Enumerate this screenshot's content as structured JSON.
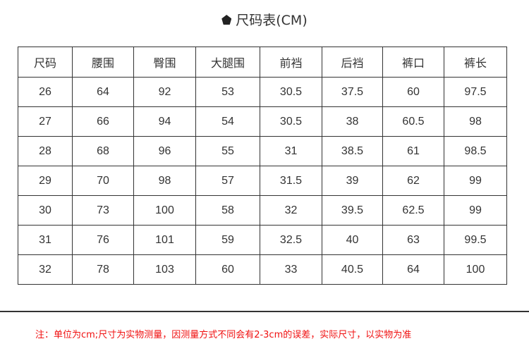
{
  "title": "尺码表(CM)",
  "headers": [
    "尺码",
    "腰围",
    "臀围",
    "大腿围",
    "前裆",
    "后裆",
    "裤口",
    "裤长"
  ],
  "rows": [
    [
      "26",
      "64",
      "92",
      "53",
      "30.5",
      "37.5",
      "60",
      "97.5"
    ],
    [
      "27",
      "66",
      "94",
      "54",
      "30.5",
      "38",
      "60.5",
      "98"
    ],
    [
      "28",
      "68",
      "96",
      "55",
      "31",
      "38.5",
      "61",
      "98.5"
    ],
    [
      "29",
      "70",
      "98",
      "57",
      "31.5",
      "39",
      "62",
      "99"
    ],
    [
      "30",
      "73",
      "100",
      "58",
      "32",
      "39.5",
      "62.5",
      "99"
    ],
    [
      "31",
      "76",
      "101",
      "59",
      "32.5",
      "40",
      "63",
      "99.5"
    ],
    [
      "32",
      "78",
      "103",
      "60",
      "33",
      "40.5",
      "64",
      "100"
    ]
  ],
  "note": "注：单位为cm;尺寸为实物测量，因测量方式不同会有2-3cm的误差，实际尺寸，以实物为准",
  "colors": {
    "note": "#f01010",
    "text": "#333333"
  }
}
